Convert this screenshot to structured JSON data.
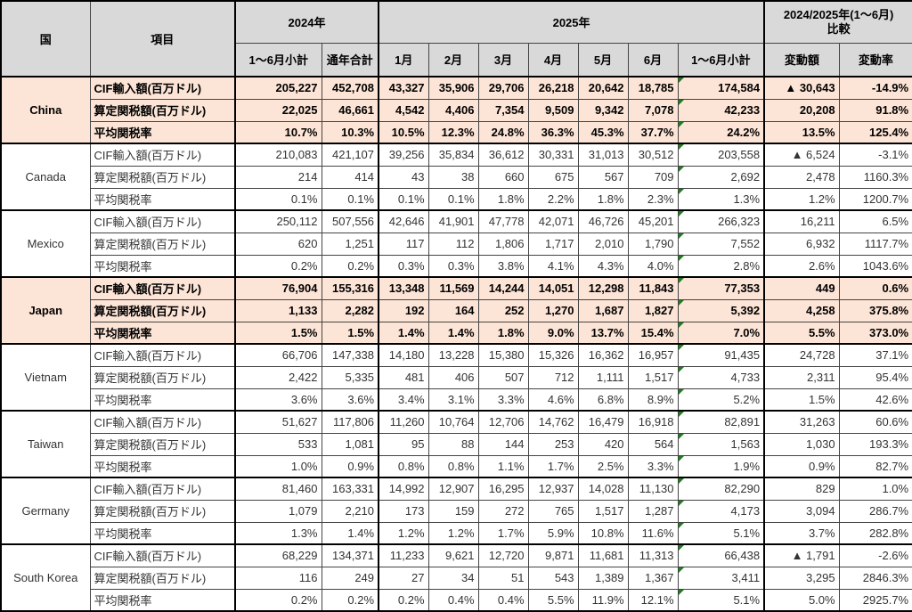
{
  "header": {
    "country": "国",
    "item": "項目",
    "year2024": "2024年",
    "year2025": "2025年",
    "compare_line1": "2024/2025年(1～6月)",
    "compare_line2": "比較",
    "sub_columns": [
      "1～6月小計",
      "通年合計",
      "1月",
      "2月",
      "3月",
      "4月",
      "5月",
      "6月",
      "1～6月小計",
      "変動額",
      "変動率"
    ]
  },
  "colors": {
    "header_bg": "#d9d9d9",
    "highlight_row_bg": "#fce4d6",
    "normal_row_bg": "#ffffff",
    "comment_triangle_green": "#1e7e1e",
    "border_thin": "#444444",
    "border_thick": "#000000",
    "negative_marker": "▲"
  },
  "chart_data": {
    "type": "table",
    "row_labels": [
      "CIF輸入額(百万ドル)",
      "算定関税額(百万ドル)",
      "平均関税率"
    ],
    "columns": [
      "2024年 1～6月小計",
      "2024年 通年合計",
      "2025年 1月",
      "2025年 2月",
      "2025年 3月",
      "2025年 4月",
      "2025年 5月",
      "2025年 6月",
      "2025年 1～6月小計",
      "変動額",
      "変動率"
    ],
    "countries": [
      {
        "name": "China",
        "highlight": true,
        "rows": [
          [
            "205,227",
            "452,708",
            "43,327",
            "35,906",
            "29,706",
            "26,218",
            "20,642",
            "18,785",
            "174,584",
            "▲ 30,643",
            "-14.9%"
          ],
          [
            "22,025",
            "46,661",
            "4,542",
            "4,406",
            "7,354",
            "9,509",
            "9,342",
            "7,078",
            "42,233",
            "20,208",
            "91.8%"
          ],
          [
            "10.7%",
            "10.3%",
            "10.5%",
            "12.3%",
            "24.8%",
            "36.3%",
            "45.3%",
            "37.7%",
            "24.2%",
            "13.5%",
            "125.4%"
          ]
        ]
      },
      {
        "name": "Canada",
        "highlight": false,
        "rows": [
          [
            "210,083",
            "421,107",
            "39,256",
            "35,834",
            "36,612",
            "30,331",
            "31,013",
            "30,512",
            "203,558",
            "▲ 6,524",
            "-3.1%"
          ],
          [
            "214",
            "414",
            "43",
            "38",
            "660",
            "675",
            "567",
            "709",
            "2,692",
            "2,478",
            "1160.3%"
          ],
          [
            "0.1%",
            "0.1%",
            "0.1%",
            "0.1%",
            "1.8%",
            "2.2%",
            "1.8%",
            "2.3%",
            "1.3%",
            "1.2%",
            "1200.7%"
          ]
        ]
      },
      {
        "name": "Mexico",
        "highlight": false,
        "rows": [
          [
            "250,112",
            "507,556",
            "42,646",
            "41,901",
            "47,778",
            "42,071",
            "46,726",
            "45,201",
            "266,323",
            "16,211",
            "6.5%"
          ],
          [
            "620",
            "1,251",
            "117",
            "112",
            "1,806",
            "1,717",
            "2,010",
            "1,790",
            "7,552",
            "6,932",
            "1117.7%"
          ],
          [
            "0.2%",
            "0.2%",
            "0.3%",
            "0.3%",
            "3.8%",
            "4.1%",
            "4.3%",
            "4.0%",
            "2.8%",
            "2.6%",
            "1043.6%"
          ]
        ]
      },
      {
        "name": "Japan",
        "highlight": true,
        "rows": [
          [
            "76,904",
            "155,316",
            "13,348",
            "11,569",
            "14,244",
            "14,051",
            "12,298",
            "11,843",
            "77,353",
            "449",
            "0.6%"
          ],
          [
            "1,133",
            "2,282",
            "192",
            "164",
            "252",
            "1,270",
            "1,687",
            "1,827",
            "5,392",
            "4,258",
            "375.8%"
          ],
          [
            "1.5%",
            "1.5%",
            "1.4%",
            "1.4%",
            "1.8%",
            "9.0%",
            "13.7%",
            "15.4%",
            "7.0%",
            "5.5%",
            "373.0%"
          ]
        ]
      },
      {
        "name": "Vietnam",
        "highlight": false,
        "rows": [
          [
            "66,706",
            "147,338",
            "14,180",
            "13,228",
            "15,380",
            "15,326",
            "16,362",
            "16,957",
            "91,435",
            "24,728",
            "37.1%"
          ],
          [
            "2,422",
            "5,335",
            "481",
            "406",
            "507",
            "712",
            "1,111",
            "1,517",
            "4,733",
            "2,311",
            "95.4%"
          ],
          [
            "3.6%",
            "3.6%",
            "3.4%",
            "3.1%",
            "3.3%",
            "4.6%",
            "6.8%",
            "8.9%",
            "5.2%",
            "1.5%",
            "42.6%"
          ]
        ]
      },
      {
        "name": "Taiwan",
        "highlight": false,
        "rows": [
          [
            "51,627",
            "117,806",
            "11,260",
            "10,764",
            "12,706",
            "14,762",
            "16,479",
            "16,918",
            "82,891",
            "31,263",
            "60.6%"
          ],
          [
            "533",
            "1,081",
            "95",
            "88",
            "144",
            "253",
            "420",
            "564",
            "1,563",
            "1,030",
            "193.3%"
          ],
          [
            "1.0%",
            "0.9%",
            "0.8%",
            "0.8%",
            "1.1%",
            "1.7%",
            "2.5%",
            "3.3%",
            "1.9%",
            "0.9%",
            "82.7%"
          ]
        ]
      },
      {
        "name": "Germany",
        "highlight": false,
        "rows": [
          [
            "81,460",
            "163,331",
            "14,992",
            "12,907",
            "16,295",
            "12,937",
            "14,028",
            "11,130",
            "82,290",
            "829",
            "1.0%"
          ],
          [
            "1,079",
            "2,210",
            "173",
            "159",
            "272",
            "765",
            "1,517",
            "1,287",
            "4,173",
            "3,094",
            "286.7%"
          ],
          [
            "1.3%",
            "1.4%",
            "1.2%",
            "1.2%",
            "1.7%",
            "5.9%",
            "10.8%",
            "11.6%",
            "5.1%",
            "3.7%",
            "282.8%"
          ]
        ]
      },
      {
        "name": "South Korea",
        "highlight": false,
        "rows": [
          [
            "68,229",
            "134,371",
            "11,233",
            "9,621",
            "12,720",
            "9,871",
            "11,681",
            "11,313",
            "66,438",
            "▲ 1,791",
            "-2.6%"
          ],
          [
            "116",
            "249",
            "27",
            "34",
            "51",
            "543",
            "1,389",
            "1,367",
            "3,411",
            "3,295",
            "2846.3%"
          ],
          [
            "0.2%",
            "0.2%",
            "0.2%",
            "0.4%",
            "0.4%",
            "5.5%",
            "11.9%",
            "12.1%",
            "5.1%",
            "5.0%",
            "2925.7%"
          ]
        ]
      }
    ]
  }
}
